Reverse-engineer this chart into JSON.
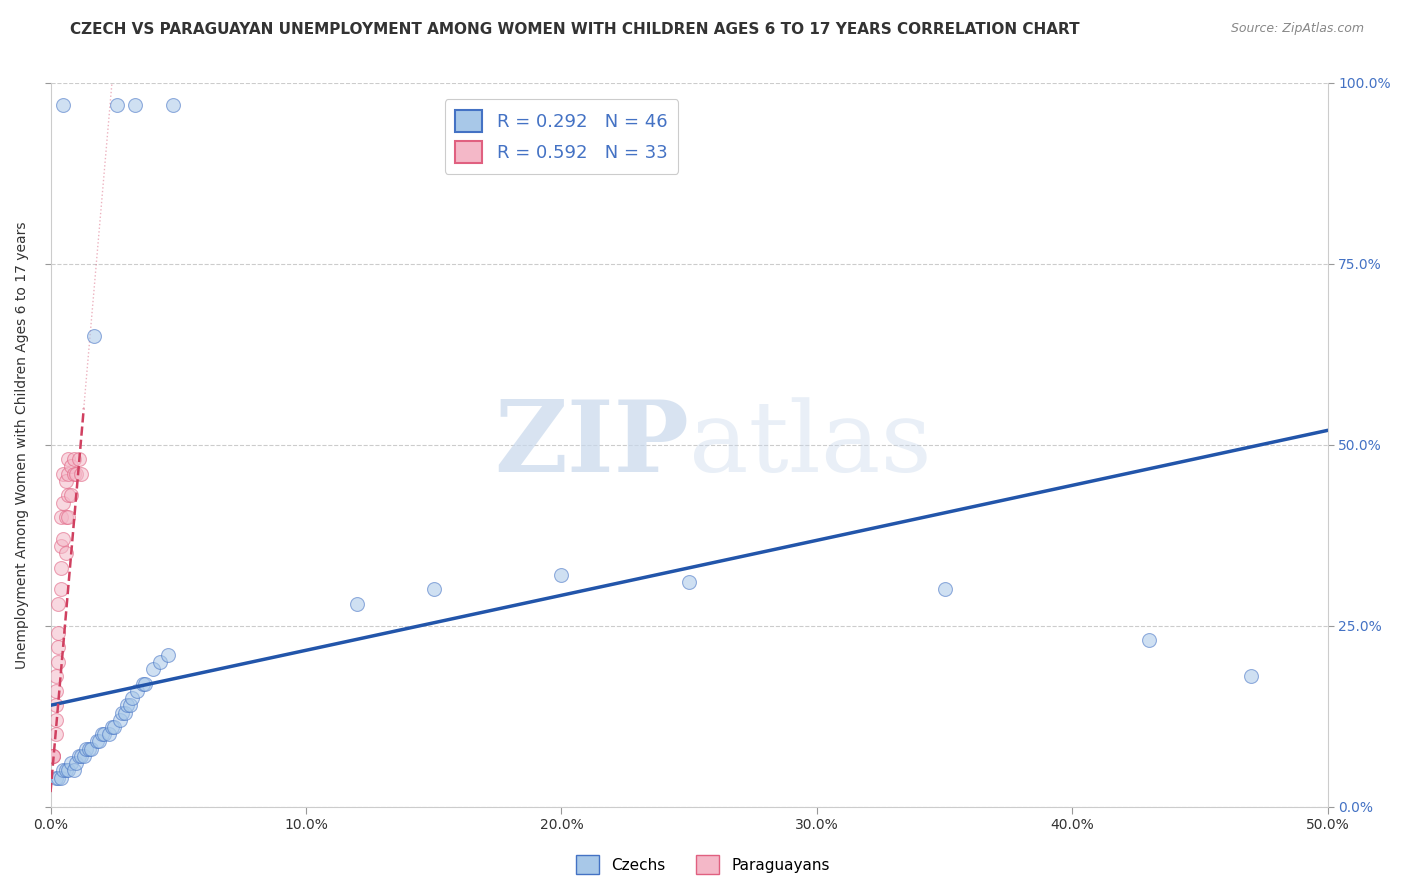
{
  "title": "CZECH VS PARAGUAYAN UNEMPLOYMENT AMONG WOMEN WITH CHILDREN AGES 6 TO 17 YEARS CORRELATION CHART",
  "source": "Source: ZipAtlas.com",
  "ylabel": "Unemployment Among Women with Children Ages 6 to 17 years",
  "xlabel": "",
  "xlim": [
    0,
    0.5
  ],
  "ylim": [
    0,
    1.0
  ],
  "xticks": [
    0.0,
    0.1,
    0.2,
    0.3,
    0.4,
    0.5
  ],
  "xticklabels": [
    "0.0%",
    "10.0%",
    "20.0%",
    "30.0%",
    "40.0%",
    "50.0%"
  ],
  "yticks": [
    0.0,
    0.25,
    0.5,
    0.75,
    1.0
  ],
  "yticklabels_right": [
    "0.0%",
    "25.0%",
    "50.0%",
    "75.0%",
    "100.0%"
  ],
  "watermark_zip": "ZIP",
  "watermark_atlas": "atlas",
  "czech_color": "#a8c8e8",
  "czech_edge_color": "#4472c4",
  "paraguayan_color": "#f4b8c8",
  "paraguayan_edge_color": "#e06080",
  "czech_R": 0.292,
  "czech_N": 46,
  "paraguayan_R": 0.592,
  "paraguayan_N": 33,
  "czech_trend_color": "#2255aa",
  "paraguayan_trend_color": "#d04060",
  "legend_R_color": "#4472c4",
  "czech_scatter_x": [
    0.005,
    0.017,
    0.026,
    0.033,
    0.048,
    0.002,
    0.003,
    0.004,
    0.005,
    0.006,
    0.007,
    0.008,
    0.009,
    0.01,
    0.011,
    0.012,
    0.013,
    0.014,
    0.015,
    0.016,
    0.018,
    0.019,
    0.02,
    0.021,
    0.023,
    0.024,
    0.025,
    0.027,
    0.028,
    0.029,
    0.03,
    0.031,
    0.032,
    0.034,
    0.036,
    0.037,
    0.04,
    0.043,
    0.046,
    0.12,
    0.15,
    0.2,
    0.25,
    0.35,
    0.43,
    0.47
  ],
  "czech_scatter_y": [
    0.97,
    0.65,
    0.97,
    0.97,
    0.97,
    0.04,
    0.04,
    0.04,
    0.05,
    0.05,
    0.05,
    0.06,
    0.05,
    0.06,
    0.07,
    0.07,
    0.07,
    0.08,
    0.08,
    0.08,
    0.09,
    0.09,
    0.1,
    0.1,
    0.1,
    0.11,
    0.11,
    0.12,
    0.13,
    0.13,
    0.14,
    0.14,
    0.15,
    0.16,
    0.17,
    0.17,
    0.19,
    0.2,
    0.21,
    0.28,
    0.3,
    0.32,
    0.31,
    0.3,
    0.23,
    0.18
  ],
  "paraguayan_scatter_x": [
    0.001,
    0.001,
    0.001,
    0.002,
    0.002,
    0.002,
    0.002,
    0.002,
    0.003,
    0.003,
    0.003,
    0.003,
    0.004,
    0.004,
    0.004,
    0.004,
    0.005,
    0.005,
    0.005,
    0.006,
    0.006,
    0.006,
    0.007,
    0.007,
    0.007,
    0.007,
    0.008,
    0.008,
    0.009,
    0.009,
    0.01,
    0.011,
    0.012
  ],
  "paraguayan_scatter_y": [
    0.07,
    0.07,
    0.07,
    0.1,
    0.12,
    0.14,
    0.16,
    0.18,
    0.2,
    0.22,
    0.24,
    0.28,
    0.3,
    0.33,
    0.36,
    0.4,
    0.37,
    0.42,
    0.46,
    0.35,
    0.4,
    0.45,
    0.4,
    0.43,
    0.46,
    0.48,
    0.43,
    0.47,
    0.46,
    0.48,
    0.46,
    0.48,
    0.46
  ],
  "czech_trend_x": [
    0.0,
    0.5
  ],
  "czech_trend_y": [
    0.14,
    0.52
  ],
  "paraguayan_trend_x": [
    0.0,
    0.013
  ],
  "paraguayan_trend_y": [
    0.02,
    0.55
  ],
  "background_color": "#ffffff",
  "grid_color": "#cccccc",
  "grid_linestyle": "--",
  "title_fontsize": 11,
  "axis_label_fontsize": 10,
  "tick_fontsize": 10,
  "legend_fontsize": 13,
  "marker_size": 100,
  "marker_alpha": 0.55,
  "marker_linewidth": 0.8
}
